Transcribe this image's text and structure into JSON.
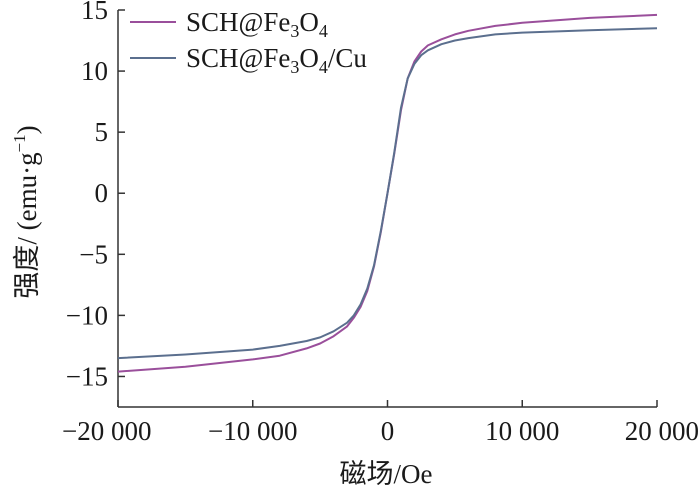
{
  "chart_data": {
    "type": "line",
    "xlabel": "磁场/Oe",
    "ylabel": "强度/ (emu·g",
    "ylabel_sup": "−1",
    "ylabel_close": ")",
    "xlim": [
      -20000,
      20000
    ],
    "ylim": [
      -17.5,
      15
    ],
    "xticks": [
      -20000,
      -10000,
      0,
      10000,
      20000
    ],
    "xtick_labels": [
      "−20 000",
      "−10 000",
      "0",
      "10 000",
      "20 000"
    ],
    "yticks": [
      15,
      10,
      5,
      0,
      -5,
      -10,
      -15
    ],
    "ytick_labels": [
      "15",
      "10",
      "5",
      "0",
      "−5",
      "−10",
      "−15"
    ],
    "legend_position": "top-left",
    "series": [
      {
        "name": "SCH@Fe3O4",
        "name_parts": {
          "pre": "SCH@Fe",
          "sub1": "3",
          "mid": "O",
          "sub2": "4",
          "post": ""
        },
        "color": "#9a4f9b",
        "points": [
          [
            -20000,
            -14.6
          ],
          [
            -15000,
            -14.2
          ],
          [
            -10000,
            -13.6
          ],
          [
            -8000,
            -13.3
          ],
          [
            -6000,
            -12.7
          ],
          [
            -5000,
            -12.3
          ],
          [
            -4000,
            -11.7
          ],
          [
            -3000,
            -10.9
          ],
          [
            -2500,
            -10.2
          ],
          [
            -2000,
            -9.3
          ],
          [
            -1500,
            -8.0
          ],
          [
            -1000,
            -6.0
          ],
          [
            -500,
            -3.2
          ],
          [
            0,
            0
          ],
          [
            500,
            3.2
          ],
          [
            1000,
            6.8
          ],
          [
            1500,
            9.4
          ],
          [
            2000,
            10.8
          ],
          [
            2500,
            11.6
          ],
          [
            3000,
            12.1
          ],
          [
            4000,
            12.6
          ],
          [
            5000,
            13.0
          ],
          [
            6000,
            13.3
          ],
          [
            8000,
            13.7
          ],
          [
            10000,
            13.95
          ],
          [
            15000,
            14.35
          ],
          [
            20000,
            14.6
          ]
        ]
      },
      {
        "name": "SCH@Fe3O4/Cu",
        "name_parts": {
          "pre": "SCH@Fe",
          "sub1": "3",
          "mid": "O",
          "sub2": "4",
          "post": "/Cu"
        },
        "color": "#5b6f8e",
        "points": [
          [
            -20000,
            -13.5
          ],
          [
            -15000,
            -13.2
          ],
          [
            -10000,
            -12.8
          ],
          [
            -8000,
            -12.5
          ],
          [
            -6000,
            -12.1
          ],
          [
            -5000,
            -11.8
          ],
          [
            -4000,
            -11.3
          ],
          [
            -3000,
            -10.6
          ],
          [
            -2500,
            -10.0
          ],
          [
            -2000,
            -9.1
          ],
          [
            -1500,
            -7.8
          ],
          [
            -1000,
            -5.9
          ],
          [
            -500,
            -3.1
          ],
          [
            0,
            0
          ],
          [
            500,
            3.3
          ],
          [
            1000,
            7.0
          ],
          [
            1500,
            9.4
          ],
          [
            2000,
            10.6
          ],
          [
            2500,
            11.3
          ],
          [
            3000,
            11.7
          ],
          [
            4000,
            12.2
          ],
          [
            5000,
            12.5
          ],
          [
            6000,
            12.7
          ],
          [
            8000,
            13.0
          ],
          [
            10000,
            13.15
          ],
          [
            15000,
            13.35
          ],
          [
            20000,
            13.5
          ]
        ]
      }
    ]
  }
}
